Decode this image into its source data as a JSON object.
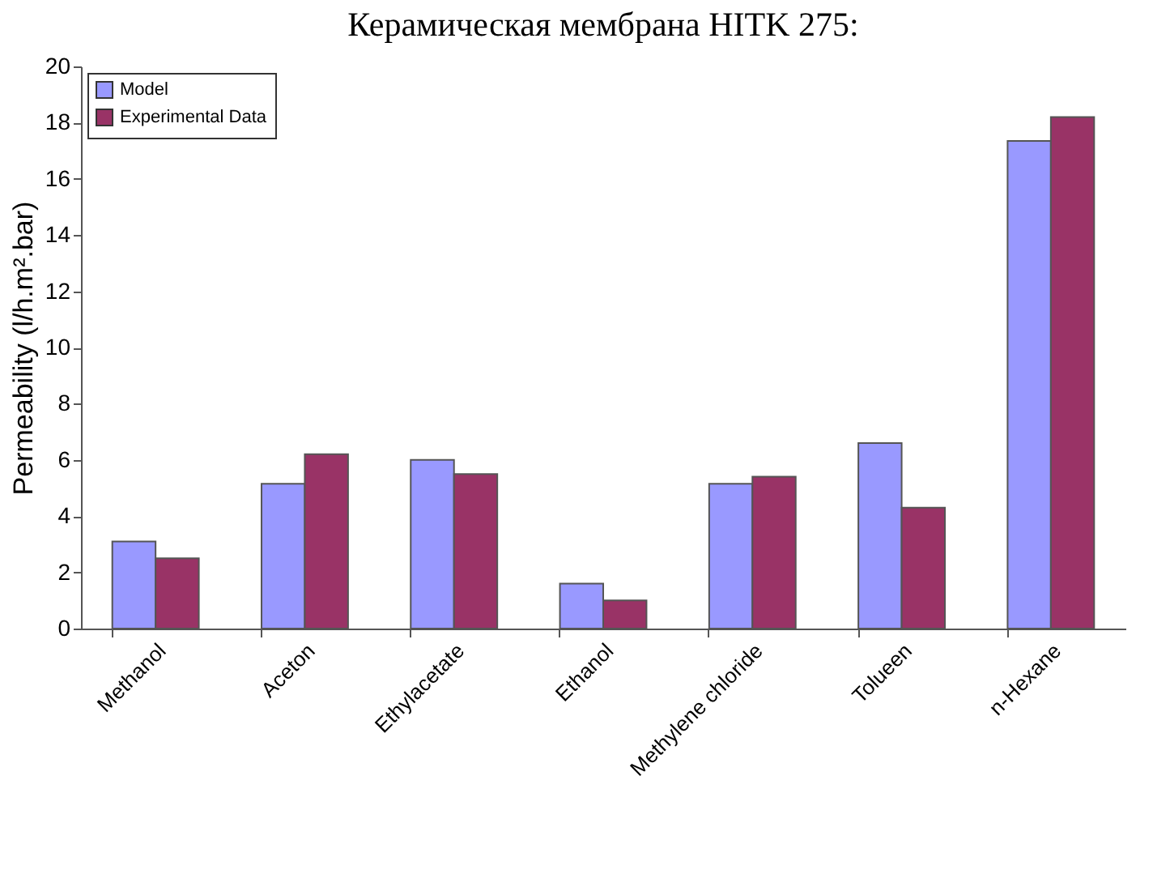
{
  "chart_data": {
    "type": "bar",
    "title": "Керамическая мембрана HITK 275:",
    "ylabel": "Permeability (l/h.m².bar)",
    "categories": [
      "Methanol",
      "Aceton",
      "Ethylacetate",
      "Ethanol",
      "Methylene chloride",
      "Tolueen",
      "n-Hexane"
    ],
    "series": [
      {
        "name": "Model",
        "color": "#9999ff",
        "values": [
          3.1,
          5.15,
          6.0,
          1.6,
          5.15,
          6.6,
          17.35
        ]
      },
      {
        "name": "Experimental Data",
        "color": "#993366",
        "values": [
          2.5,
          6.2,
          5.5,
          1.0,
          5.4,
          4.3,
          18.2
        ]
      }
    ],
    "ylim": [
      0,
      20
    ],
    "yticks": [
      0,
      2,
      4,
      6,
      8,
      10,
      12,
      14,
      16,
      18,
      20
    ],
    "grid": false,
    "legend": "top left"
  }
}
